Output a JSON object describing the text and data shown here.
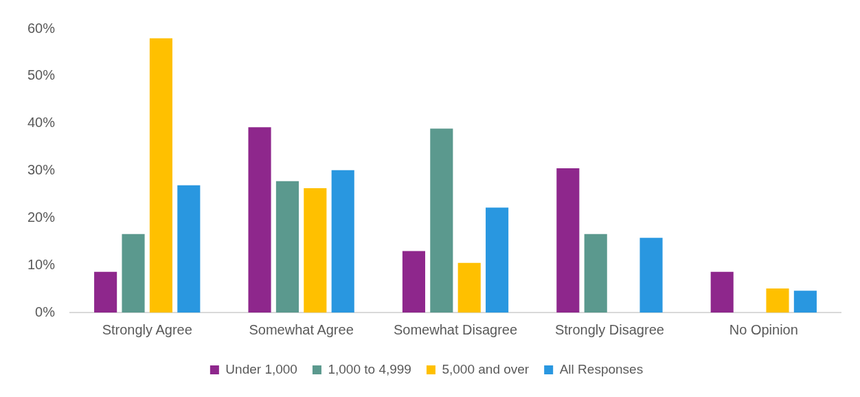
{
  "chart_data": {
    "type": "bar",
    "categories": [
      "Strongly Agree",
      "Somewhat Agree",
      "Somewhat Disagree",
      "Strongly Disagree",
      "No Opinion"
    ],
    "series": [
      {
        "name": "Under 1,000",
        "color": "#8e278c",
        "values": [
          8.6,
          39.2,
          13.0,
          30.5,
          8.6
        ]
      },
      {
        "name": "1,000 to 4,999",
        "color": "#5b998e",
        "values": [
          16.6,
          27.8,
          38.9,
          16.6,
          0
        ]
      },
      {
        "name": "5,000 and over",
        "color": "#ffc000",
        "values": [
          58.0,
          26.3,
          10.5,
          0,
          5.1
        ]
      },
      {
        "name": "All Responses",
        "color": "#2997e0",
        "values": [
          26.9,
          30.1,
          22.2,
          15.8,
          4.6
        ]
      }
    ],
    "ylim": [
      0,
      60
    ],
    "yticks": [
      {
        "value": 0,
        "label": "0%"
      },
      {
        "value": 10,
        "label": "10%"
      },
      {
        "value": 20,
        "label": "20%"
      },
      {
        "value": 30,
        "label": "30%"
      },
      {
        "value": 40,
        "label": "40%"
      },
      {
        "value": 50,
        "label": "50%"
      },
      {
        "value": 60,
        "label": "60%"
      }
    ],
    "grid": false,
    "legend": "bottom"
  }
}
